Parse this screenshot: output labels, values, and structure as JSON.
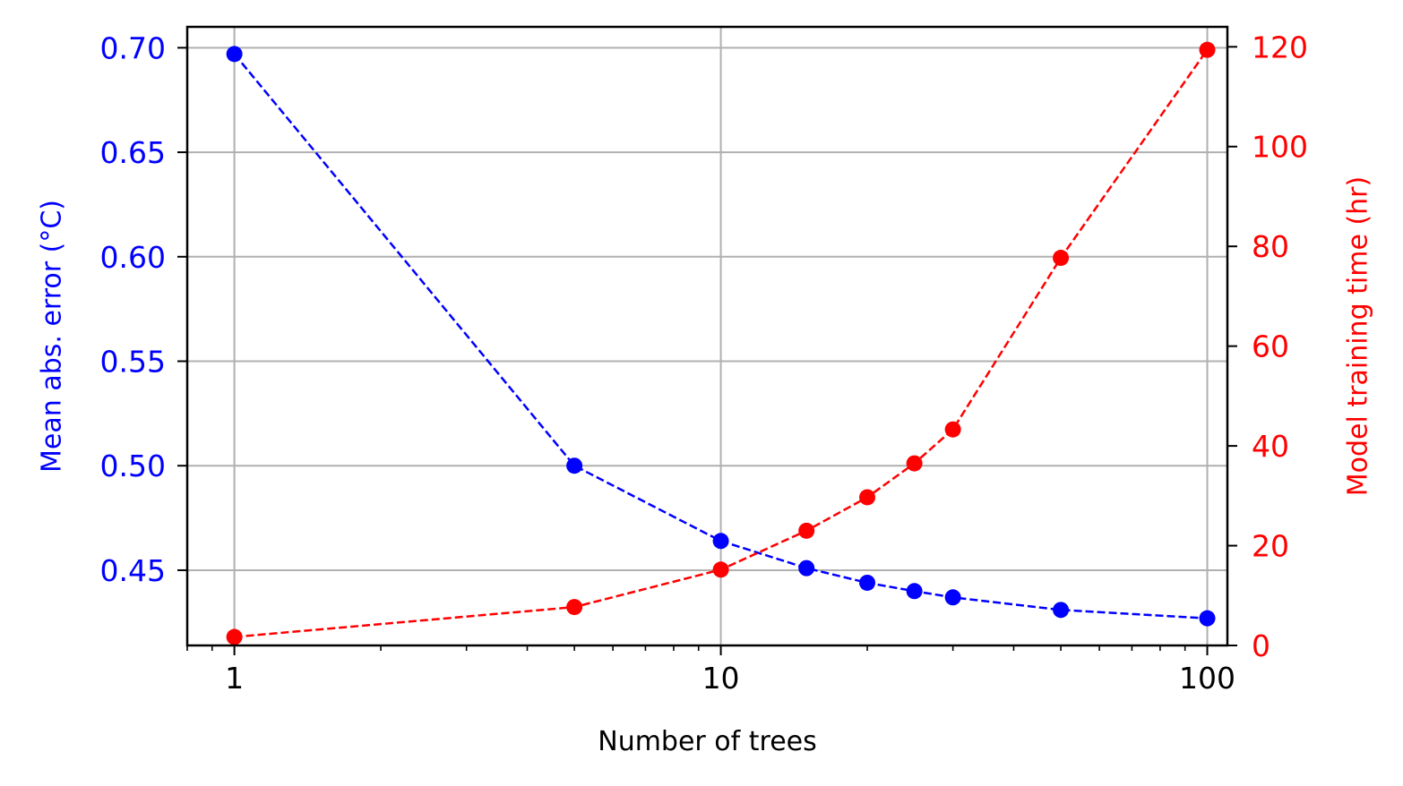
{
  "chart_data": {
    "type": "line",
    "x": [
      1,
      5,
      10,
      15,
      20,
      25,
      30,
      50,
      100
    ],
    "xlabel": "Number of trees",
    "xscale": "log",
    "xlim": [
      0.8,
      110
    ],
    "xticks": [
      1,
      10,
      100
    ],
    "xtick_labels": [
      "1",
      "10",
      "100"
    ],
    "grid": true,
    "series": [
      {
        "axis": "left",
        "color": "#0000ff",
        "linestyle": "dashed",
        "marker": "circle",
        "values": [
          0.697,
          0.5,
          0.464,
          0.451,
          0.444,
          0.44,
          0.437,
          0.431,
          0.427
        ]
      },
      {
        "axis": "right",
        "color": "#ff0000",
        "linestyle": "dashed",
        "marker": "circle",
        "values": [
          1.7,
          7.7,
          15.2,
          23.0,
          29.7,
          36.5,
          43.3,
          77.7,
          119.4
        ]
      }
    ],
    "y_left": {
      "label": "Mean abs. error (°C)",
      "color": "#0000ff",
      "lim": [
        0.414,
        0.71
      ],
      "ticks": [
        0.45,
        0.5,
        0.55,
        0.6,
        0.65,
        0.7
      ],
      "tick_labels": [
        "0.45",
        "0.50",
        "0.55",
        "0.60",
        "0.65",
        "0.70"
      ]
    },
    "y_right": {
      "label": "Model training time (hr)",
      "color": "#ff0000",
      "lim": [
        0,
        124
      ],
      "ticks": [
        0,
        20,
        40,
        60,
        80,
        100,
        120
      ],
      "tick_labels": [
        "0",
        "20",
        "40",
        "60",
        "80",
        "100",
        "120"
      ]
    }
  }
}
